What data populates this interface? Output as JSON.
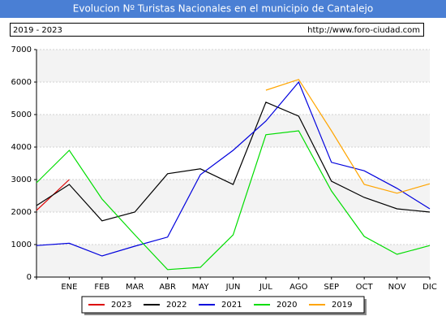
{
  "chart_data": {
    "type": "line",
    "title": "Evolucion Nº Turistas Nacionales en el municipio de Cantalejo",
    "subtitle": "2019 - 2023",
    "source": "http://www.foro-ciudad.com",
    "categories": [
      null,
      "ENE",
      "FEB",
      "MAR",
      "ABR",
      "MAY",
      "JUN",
      "JUL",
      "AGO",
      "SEP",
      "OCT",
      "NOV",
      "DIC"
    ],
    "series": [
      {
        "name": "2023",
        "color": "#dd0000",
        "values": [
          2050,
          3000,
          null,
          null,
          null,
          null,
          null,
          null,
          null,
          null,
          null,
          null,
          null
        ]
      },
      {
        "name": "2022",
        "color": "#000000",
        "values": [
          2200,
          2850,
          1730,
          2000,
          3180,
          3330,
          2850,
          5380,
          4950,
          2950,
          2450,
          2100,
          2000
        ]
      },
      {
        "name": "2021",
        "color": "#0000dd",
        "values": [
          970,
          1040,
          650,
          950,
          1230,
          3150,
          3900,
          4800,
          6000,
          3530,
          3270,
          2730,
          2100
        ]
      },
      {
        "name": "2020",
        "color": "#00dd00",
        "values": [
          2900,
          3900,
          2400,
          1300,
          230,
          300,
          1300,
          4380,
          4500,
          2650,
          1250,
          700,
          970
        ]
      },
      {
        "name": "2019",
        "color": "#ffa500",
        "values": [
          null,
          null,
          null,
          null,
          null,
          null,
          null,
          5750,
          6080,
          4500,
          2850,
          2580,
          2870
        ]
      }
    ],
    "ylim": [
      0,
      7000
    ],
    "yticks": [
      0,
      1000,
      2000,
      3000,
      4000,
      5000,
      6000,
      7000
    ],
    "grid": true,
    "legend": "bottom"
  }
}
